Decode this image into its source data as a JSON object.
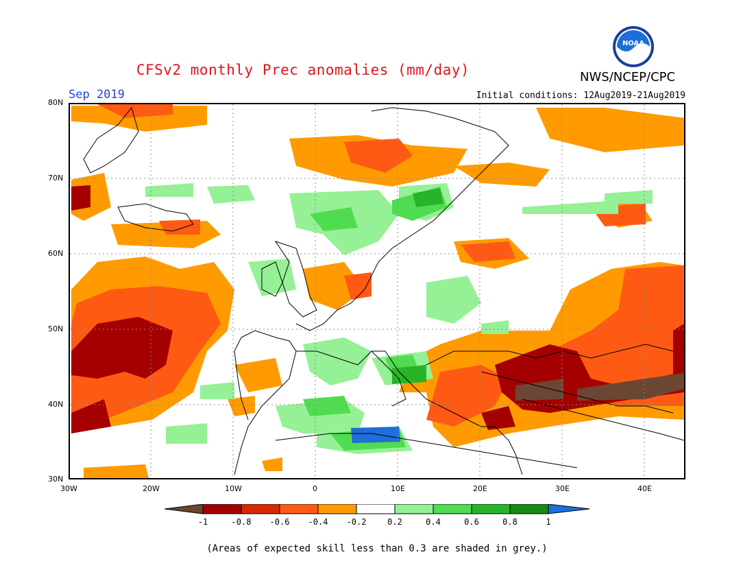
{
  "header": {
    "title": "CFSv2 monthly Prec anomalies (mm/day)",
    "org": "NWS/NCEP/CPC",
    "logo_text": "NOAA",
    "month": "Sep 2019",
    "initial_conditions": "Initial conditions: 12Aug2019-21Aug2019"
  },
  "map": {
    "region": "Europe",
    "projection": "lat-lon",
    "lon_range": [
      -30,
      45
    ],
    "lat_range": [
      30,
      80
    ],
    "grid": true,
    "lat_labels": [
      "80N",
      "70N",
      "60N",
      "50N",
      "40N",
      "30N"
    ],
    "lon_labels": [
      "30W",
      "20W",
      "10W",
      "0",
      "10E",
      "20E",
      "30E",
      "40E"
    ]
  },
  "colorbar": {
    "labels": [
      "-1",
      "-0.8",
      "-0.6",
      "-0.4",
      "-0.2",
      "0.2",
      "0.4",
      "0.6",
      "0.8",
      "1"
    ],
    "colors": [
      "#6b4632",
      "#a50000",
      "#d72800",
      "#ff5a14",
      "#ff9b00",
      "#ffffff",
      "#96f096",
      "#50dc50",
      "#28b428",
      "#148c14",
      "#1e6edc"
    ]
  },
  "footer": {
    "note": "(Areas of expected skill less than 0.3 are shaded in grey.)"
  }
}
